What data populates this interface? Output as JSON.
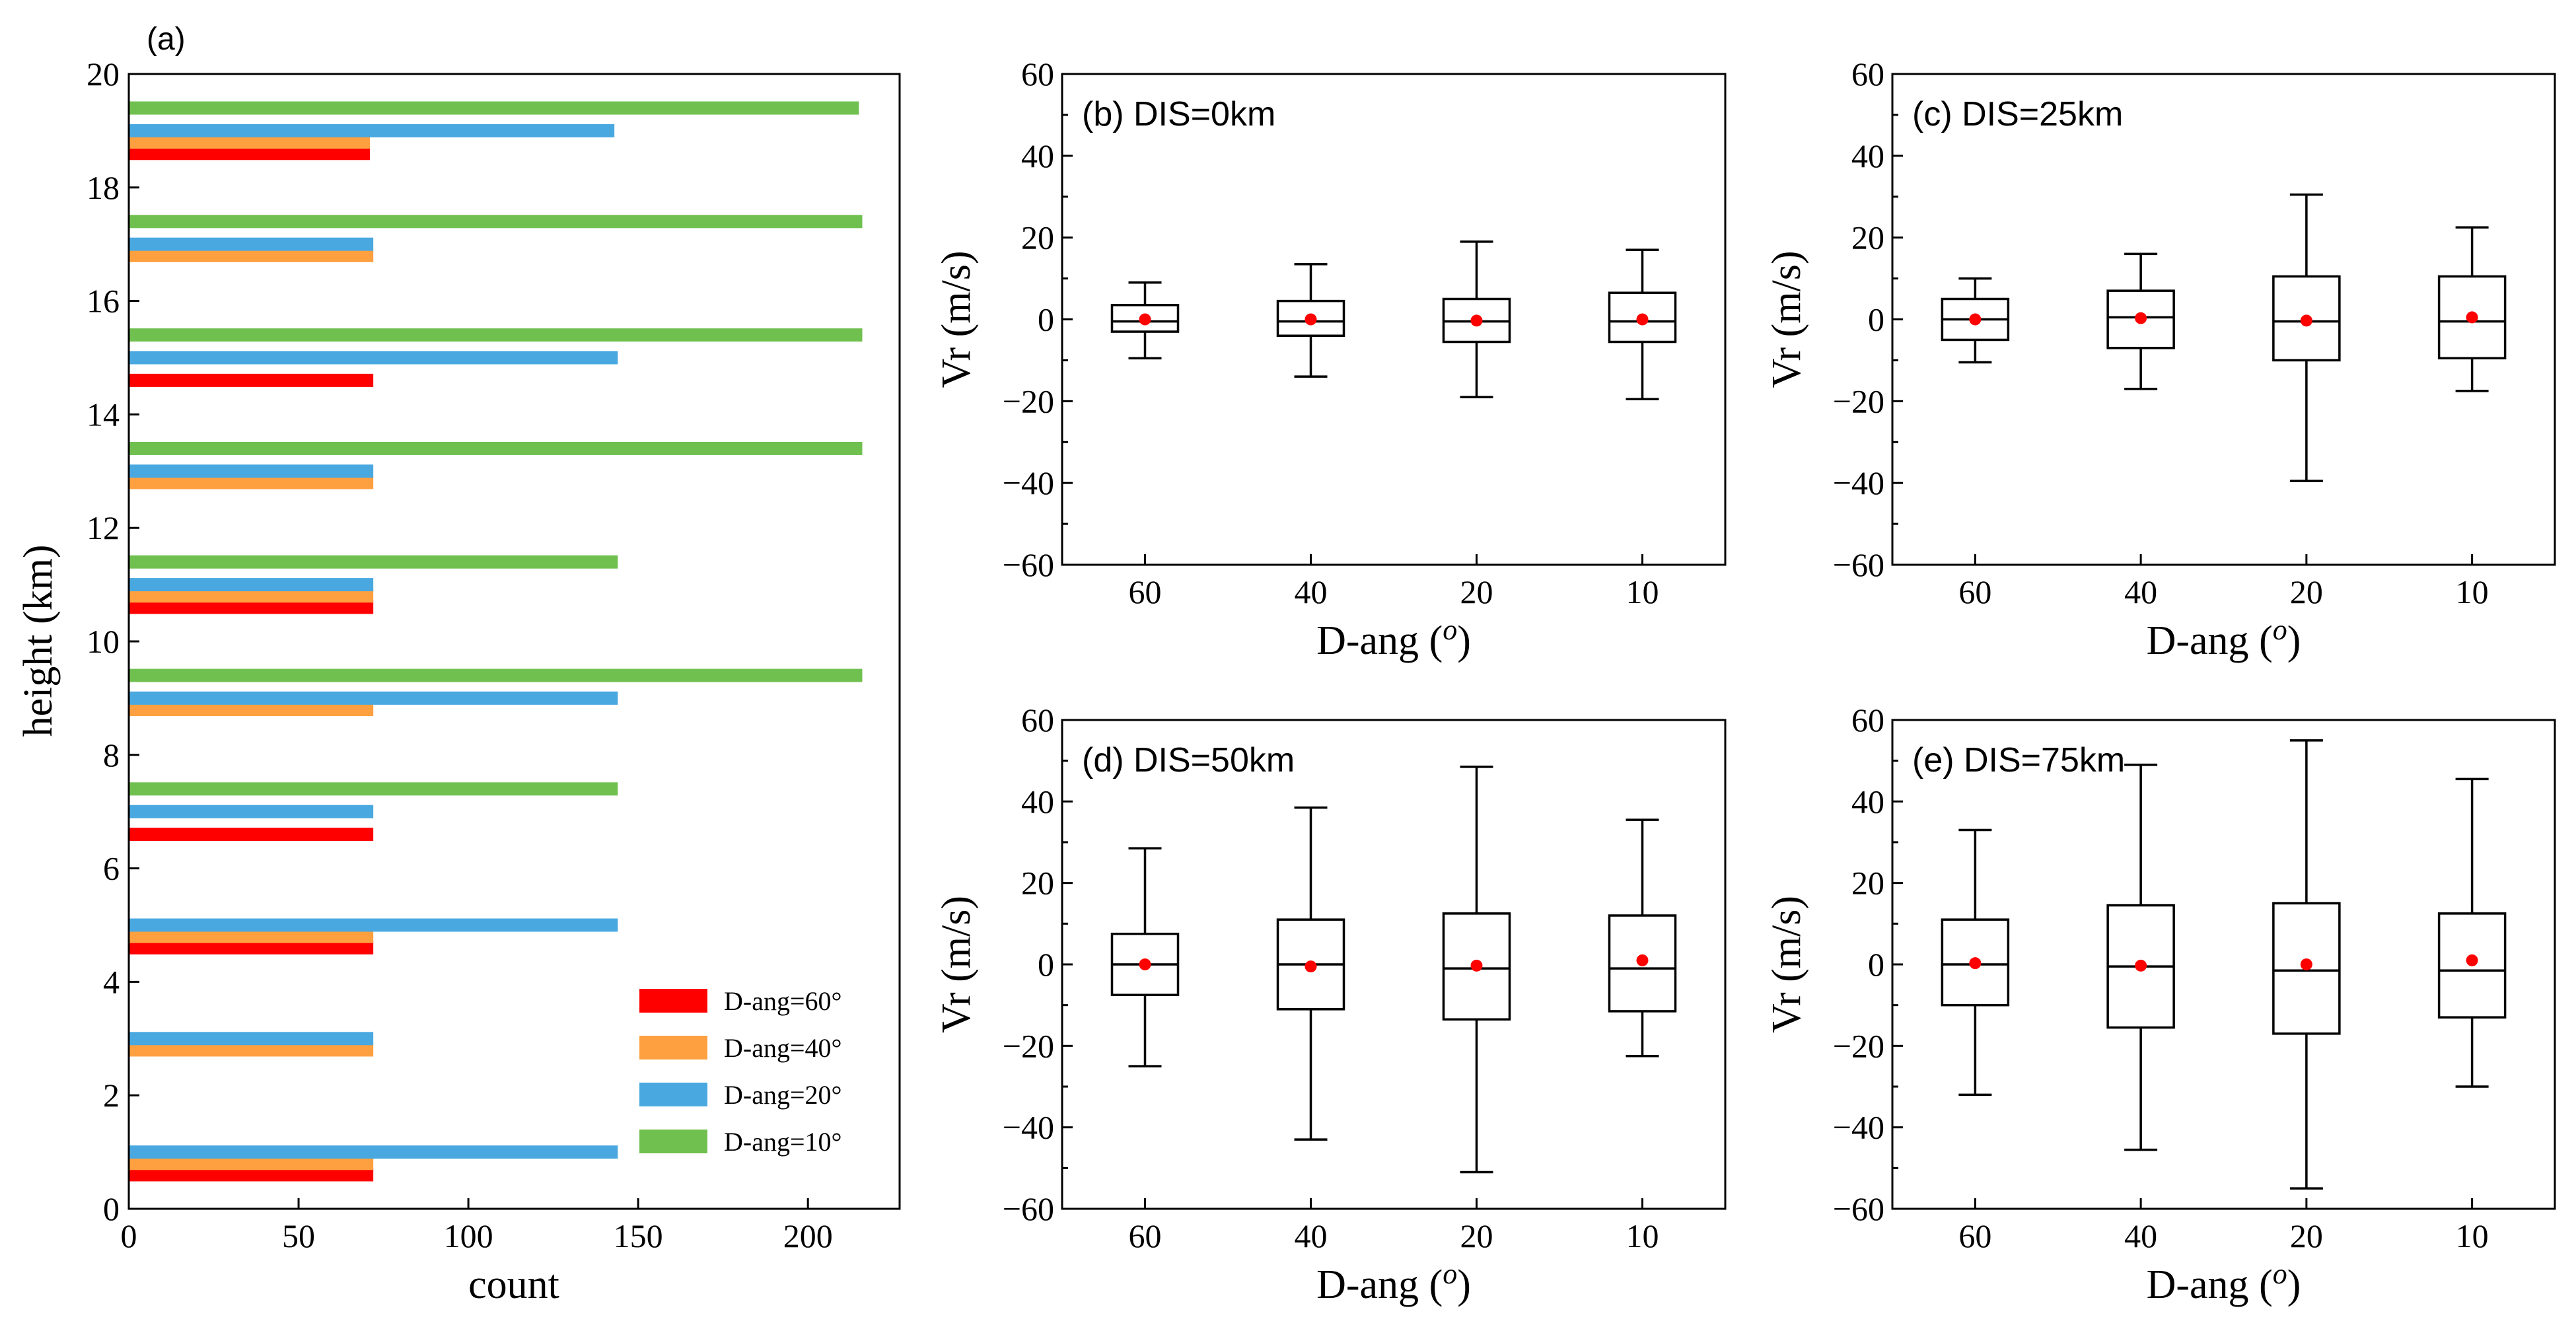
{
  "colors": {
    "d60": "#ff0000",
    "d40": "#ffa040",
    "d20": "#4aa8e0",
    "d10": "#70c050",
    "axis": "#000000",
    "mean": "#ff0000"
  },
  "chart_data": [
    {
      "id": "a",
      "type": "bar",
      "orientation": "horizontal",
      "panel_label": "(a)",
      "xlabel": "count",
      "ylabel": "height (km)",
      "xlim": [
        0,
        227
      ],
      "ylim": [
        0,
        20
      ],
      "xticks": [
        0,
        50,
        100,
        150,
        200
      ],
      "yticks": [
        0,
        2,
        4,
        6,
        8,
        10,
        12,
        14,
        16,
        18,
        20
      ],
      "bar_offsets_km": [
        -0.15,
        0.05,
        0.25,
        0.45
      ],
      "series": [
        {
          "name": "D-ang=60°",
          "key": "d60",
          "points": [
            [
              0.6,
              72
            ],
            [
              4.6,
              72
            ],
            [
              6.6,
              72
            ],
            [
              10.6,
              72
            ],
            [
              14.6,
              72
            ],
            [
              18.6,
              71
            ]
          ]
        },
        {
          "name": "D-ang=40°",
          "key": "d40",
          "points": [
            [
              0.8,
              72
            ],
            [
              2.8,
              72
            ],
            [
              4.8,
              72
            ],
            [
              8.8,
              72
            ],
            [
              10.8,
              72
            ],
            [
              12.8,
              72
            ],
            [
              16.8,
              72
            ],
            [
              18.8,
              71
            ]
          ]
        },
        {
          "name": "D-ang=20°",
          "key": "d20",
          "points": [
            [
              1.0,
              144
            ],
            [
              3.0,
              72
            ],
            [
              5.0,
              144
            ],
            [
              7.0,
              72
            ],
            [
              9.0,
              144
            ],
            [
              11.0,
              72
            ],
            [
              13.0,
              72
            ],
            [
              15.0,
              144
            ],
            [
              17.0,
              72
            ],
            [
              19.0,
              143
            ]
          ]
        },
        {
          "name": "D-ang=10°",
          "key": "d10",
          "points": [
            [
              7.4,
              144
            ],
            [
              9.4,
              216
            ],
            [
              11.4,
              144
            ],
            [
              13.4,
              216
            ],
            [
              15.4,
              216
            ],
            [
              17.4,
              216
            ],
            [
              19.4,
              215
            ]
          ]
        }
      ],
      "legend": [
        "D-ang=60°",
        "D-ang=40°",
        "D-ang=20°",
        "D-ang=10°"
      ],
      "legend_position": "lower-right"
    },
    {
      "id": "b",
      "type": "box",
      "title": "(b) DIS=0km",
      "xlabel": "D-ang",
      "xlabel_sup": "o",
      "ylabel": "Vr (m/s)",
      "ylim": [
        -60,
        60
      ],
      "yticks": [
        -60,
        -40,
        -20,
        0,
        20,
        40,
        60
      ],
      "categories": [
        "60",
        "40",
        "20",
        "10"
      ],
      "boxes": [
        {
          "min": -9.5,
          "q1": -3,
          "median": -0.5,
          "q3": 3.5,
          "max": 9,
          "mean": 0
        },
        {
          "min": -14,
          "q1": -4,
          "median": -0.5,
          "q3": 4.5,
          "max": 13.5,
          "mean": 0
        },
        {
          "min": -19,
          "q1": -5.5,
          "median": -0.5,
          "q3": 5,
          "max": 19,
          "mean": -0.3
        },
        {
          "min": -19.5,
          "q1": -5.5,
          "median": -0.5,
          "q3": 6.5,
          "max": 17,
          "mean": 0
        }
      ]
    },
    {
      "id": "c",
      "type": "box",
      "title": "(c) DIS=25km",
      "xlabel": "D-ang",
      "xlabel_sup": "o",
      "ylabel": "Vr (m/s)",
      "ylim": [
        -60,
        60
      ],
      "yticks": [
        -60,
        -40,
        -20,
        0,
        20,
        40,
        60
      ],
      "categories": [
        "60",
        "40",
        "20",
        "10"
      ],
      "boxes": [
        {
          "min": -10.5,
          "q1": -5,
          "median": 0,
          "q3": 5,
          "max": 10,
          "mean": 0
        },
        {
          "min": -17,
          "q1": -7,
          "median": 0.5,
          "q3": 7,
          "max": 16,
          "mean": 0.3
        },
        {
          "min": -39.5,
          "q1": -10,
          "median": -0.5,
          "q3": 10.5,
          "max": 30.5,
          "mean": -0.3
        },
        {
          "min": -17.5,
          "q1": -9.5,
          "median": -0.5,
          "q3": 10.5,
          "max": 22.5,
          "mean": 0.5
        }
      ]
    },
    {
      "id": "d",
      "type": "box",
      "title": "(d) DIS=50km",
      "xlabel": "D-ang",
      "xlabel_sup": "o",
      "ylabel": "Vr (m/s)",
      "ylim": [
        -60,
        60
      ],
      "yticks": [
        -60,
        -40,
        -20,
        0,
        20,
        40,
        60
      ],
      "categories": [
        "60",
        "40",
        "20",
        "10"
      ],
      "boxes": [
        {
          "min": -25,
          "q1": -7.5,
          "median": 0,
          "q3": 7.5,
          "max": 28.5,
          "mean": 0
        },
        {
          "min": -43,
          "q1": -11,
          "median": 0,
          "q3": 11,
          "max": 38.5,
          "mean": -0.5
        },
        {
          "min": -51,
          "q1": -13.5,
          "median": -1,
          "q3": 12.5,
          "max": 48.5,
          "mean": -0.3
        },
        {
          "min": -22.5,
          "q1": -11.5,
          "median": -1,
          "q3": 12,
          "max": 35.5,
          "mean": 1
        }
      ]
    },
    {
      "id": "e",
      "type": "box",
      "title": "(e) DIS=75km",
      "xlabel": "D-ang",
      "xlabel_sup": "o",
      "ylabel": "Vr (m/s)",
      "ylim": [
        -60,
        60
      ],
      "yticks": [
        -60,
        -40,
        -20,
        0,
        20,
        40,
        60
      ],
      "categories": [
        "60",
        "40",
        "20",
        "10"
      ],
      "boxes": [
        {
          "min": -32,
          "q1": -10,
          "median": 0,
          "q3": 11,
          "max": 33,
          "mean": 0.3
        },
        {
          "min": -45.5,
          "q1": -15.5,
          "median": -0.5,
          "q3": 14.5,
          "max": 49,
          "mean": -0.3
        },
        {
          "min": -55,
          "q1": -17,
          "median": -1.5,
          "q3": 15,
          "max": 55,
          "mean": 0
        },
        {
          "min": -30,
          "q1": -13,
          "median": -1.5,
          "q3": 12.5,
          "max": 45.5,
          "mean": 1
        }
      ]
    }
  ]
}
